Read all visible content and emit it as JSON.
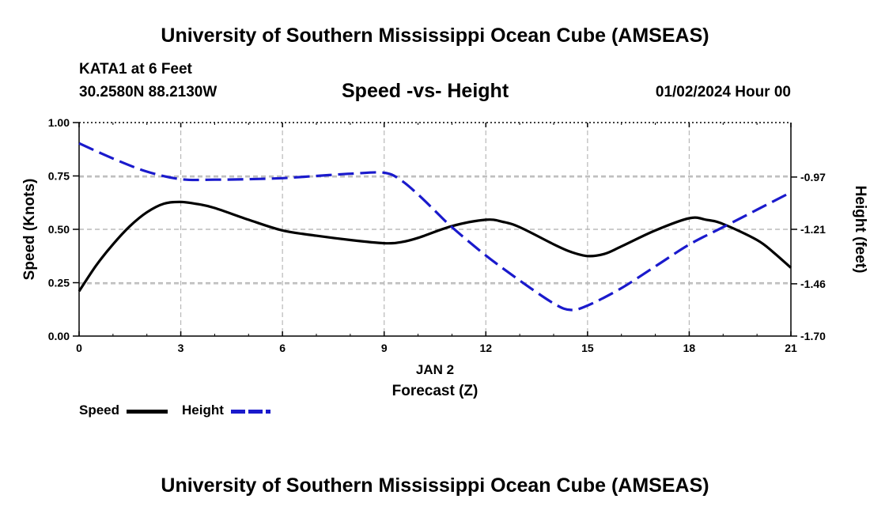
{
  "header": {
    "title_top": "University of Southern Mississippi Ocean Cube (AMSEAS)",
    "station": "KATA1 at 6 Feet",
    "coords": "30.2580N  88.2130W",
    "subtitle": "Speed -vs- Height",
    "datetime": "01/02/2024 Hour 00",
    "title_bottom": "University of Southern Mississippi Ocean Cube (AMSEAS)"
  },
  "legend": {
    "speed_label": "Speed",
    "height_label": "Height"
  },
  "colors": {
    "speed": "#000000",
    "height": "#1a1acc",
    "grid": "#b8b8b8"
  },
  "chart_data": {
    "type": "line",
    "title": "Speed -vs- Height",
    "xlabel": "Forecast (Z)",
    "xlabel_date": "JAN 2",
    "ylabel_left": "Speed (Knots)",
    "ylabel_right": "Height (feet)",
    "xlim": [
      0,
      21
    ],
    "ylim_left": [
      0,
      1.0
    ],
    "ylim_right": [
      -1.7,
      -0.72
    ],
    "x_ticks": [
      0,
      3,
      6,
      9,
      12,
      15,
      18,
      21
    ],
    "x_tick_labels": [
      "0",
      "3",
      "6",
      "9",
      "12",
      "15",
      "18",
      "21"
    ],
    "y_left_ticks": [
      0,
      0.25,
      0.5,
      0.75,
      1.0
    ],
    "y_left_tick_labels": [
      "0.00",
      "0.25",
      "0.50",
      "0.75",
      "1.00"
    ],
    "y_right_ticks": [
      -0.97,
      -1.21,
      -1.46,
      -1.7
    ],
    "y_right_tick_labels": [
      "-0.97",
      "-1.21",
      "-1.46",
      "-1.70"
    ],
    "grid": true,
    "series": [
      {
        "name": "Speed",
        "axis": "left",
        "style": "solid",
        "x": [
          0,
          0.5,
          1,
          1.5,
          2,
          2.5,
          3,
          3.5,
          4,
          5,
          6,
          7,
          8,
          9,
          9.5,
          10,
          11,
          12,
          12.5,
          13,
          14,
          14.5,
          15,
          15.5,
          16,
          17,
          18,
          18.5,
          19,
          20,
          20.5,
          21
        ],
        "values": [
          0.21,
          0.33,
          0.43,
          0.515,
          0.58,
          0.62,
          0.628,
          0.618,
          0.6,
          0.545,
          0.495,
          0.47,
          0.45,
          0.435,
          0.44,
          0.46,
          0.515,
          0.545,
          0.535,
          0.51,
          0.43,
          0.395,
          0.375,
          0.385,
          0.42,
          0.495,
          0.552,
          0.545,
          0.525,
          0.45,
          0.39,
          0.32
        ]
      },
      {
        "name": "Height",
        "axis": "right",
        "style": "dashed",
        "x": [
          0,
          1,
          2,
          3,
          4,
          5,
          6,
          7,
          8,
          9,
          9.5,
          10,
          10.5,
          11,
          12,
          13,
          14,
          14.5,
          15,
          16,
          17,
          18,
          19,
          20,
          21
        ],
        "values": [
          -0.815,
          -0.885,
          -0.945,
          -0.98,
          -0.982,
          -0.98,
          -0.975,
          -0.965,
          -0.955,
          -0.95,
          -0.985,
          -1.05,
          -1.125,
          -1.2,
          -1.33,
          -1.445,
          -1.55,
          -1.58,
          -1.56,
          -1.48,
          -1.38,
          -1.28,
          -1.2,
          -1.12,
          -1.04
        ]
      }
    ]
  }
}
